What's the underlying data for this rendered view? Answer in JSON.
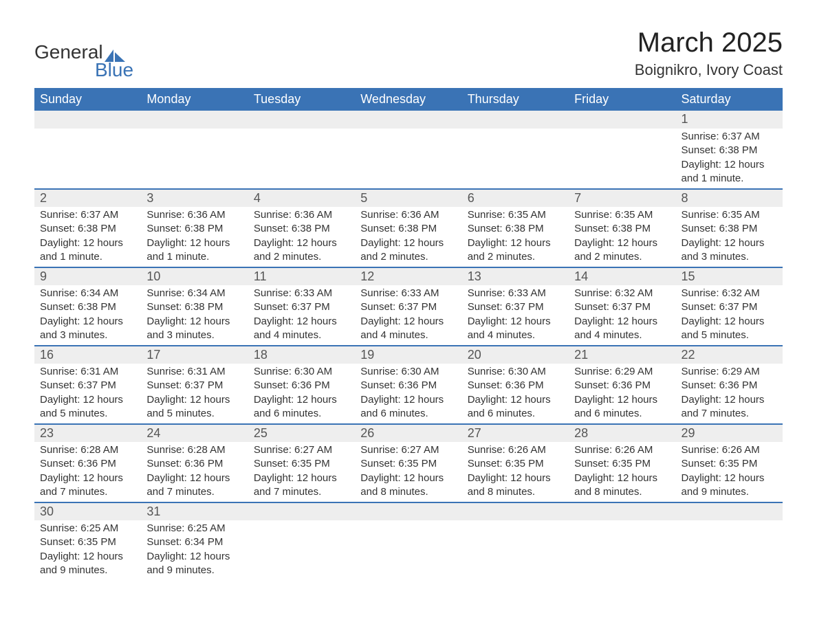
{
  "logo": {
    "word1": "General",
    "word2": "Blue"
  },
  "title": "March 2025",
  "location": "Boignikro, Ivory Coast",
  "colors": {
    "header_bg": "#3a73b5",
    "header_text": "#ffffff",
    "daynum_bg": "#eeeeee",
    "text": "#333333",
    "row_border": "#3a73b5",
    "logo_accent": "#3a73b5"
  },
  "day_names": [
    "Sunday",
    "Monday",
    "Tuesday",
    "Wednesday",
    "Thursday",
    "Friday",
    "Saturday"
  ],
  "weeks": [
    [
      null,
      null,
      null,
      null,
      null,
      null,
      {
        "n": "1",
        "sunrise": "Sunrise: 6:37 AM",
        "sunset": "Sunset: 6:38 PM",
        "daylight": "Daylight: 12 hours and 1 minute."
      }
    ],
    [
      {
        "n": "2",
        "sunrise": "Sunrise: 6:37 AM",
        "sunset": "Sunset: 6:38 PM",
        "daylight": "Daylight: 12 hours and 1 minute."
      },
      {
        "n": "3",
        "sunrise": "Sunrise: 6:36 AM",
        "sunset": "Sunset: 6:38 PM",
        "daylight": "Daylight: 12 hours and 1 minute."
      },
      {
        "n": "4",
        "sunrise": "Sunrise: 6:36 AM",
        "sunset": "Sunset: 6:38 PM",
        "daylight": "Daylight: 12 hours and 2 minutes."
      },
      {
        "n": "5",
        "sunrise": "Sunrise: 6:36 AM",
        "sunset": "Sunset: 6:38 PM",
        "daylight": "Daylight: 12 hours and 2 minutes."
      },
      {
        "n": "6",
        "sunrise": "Sunrise: 6:35 AM",
        "sunset": "Sunset: 6:38 PM",
        "daylight": "Daylight: 12 hours and 2 minutes."
      },
      {
        "n": "7",
        "sunrise": "Sunrise: 6:35 AM",
        "sunset": "Sunset: 6:38 PM",
        "daylight": "Daylight: 12 hours and 2 minutes."
      },
      {
        "n": "8",
        "sunrise": "Sunrise: 6:35 AM",
        "sunset": "Sunset: 6:38 PM",
        "daylight": "Daylight: 12 hours and 3 minutes."
      }
    ],
    [
      {
        "n": "9",
        "sunrise": "Sunrise: 6:34 AM",
        "sunset": "Sunset: 6:38 PM",
        "daylight": "Daylight: 12 hours and 3 minutes."
      },
      {
        "n": "10",
        "sunrise": "Sunrise: 6:34 AM",
        "sunset": "Sunset: 6:38 PM",
        "daylight": "Daylight: 12 hours and 3 minutes."
      },
      {
        "n": "11",
        "sunrise": "Sunrise: 6:33 AM",
        "sunset": "Sunset: 6:37 PM",
        "daylight": "Daylight: 12 hours and 4 minutes."
      },
      {
        "n": "12",
        "sunrise": "Sunrise: 6:33 AM",
        "sunset": "Sunset: 6:37 PM",
        "daylight": "Daylight: 12 hours and 4 minutes."
      },
      {
        "n": "13",
        "sunrise": "Sunrise: 6:33 AM",
        "sunset": "Sunset: 6:37 PM",
        "daylight": "Daylight: 12 hours and 4 minutes."
      },
      {
        "n": "14",
        "sunrise": "Sunrise: 6:32 AM",
        "sunset": "Sunset: 6:37 PM",
        "daylight": "Daylight: 12 hours and 4 minutes."
      },
      {
        "n": "15",
        "sunrise": "Sunrise: 6:32 AM",
        "sunset": "Sunset: 6:37 PM",
        "daylight": "Daylight: 12 hours and 5 minutes."
      }
    ],
    [
      {
        "n": "16",
        "sunrise": "Sunrise: 6:31 AM",
        "sunset": "Sunset: 6:37 PM",
        "daylight": "Daylight: 12 hours and 5 minutes."
      },
      {
        "n": "17",
        "sunrise": "Sunrise: 6:31 AM",
        "sunset": "Sunset: 6:37 PM",
        "daylight": "Daylight: 12 hours and 5 minutes."
      },
      {
        "n": "18",
        "sunrise": "Sunrise: 6:30 AM",
        "sunset": "Sunset: 6:36 PM",
        "daylight": "Daylight: 12 hours and 6 minutes."
      },
      {
        "n": "19",
        "sunrise": "Sunrise: 6:30 AM",
        "sunset": "Sunset: 6:36 PM",
        "daylight": "Daylight: 12 hours and 6 minutes."
      },
      {
        "n": "20",
        "sunrise": "Sunrise: 6:30 AM",
        "sunset": "Sunset: 6:36 PM",
        "daylight": "Daylight: 12 hours and 6 minutes."
      },
      {
        "n": "21",
        "sunrise": "Sunrise: 6:29 AM",
        "sunset": "Sunset: 6:36 PM",
        "daylight": "Daylight: 12 hours and 6 minutes."
      },
      {
        "n": "22",
        "sunrise": "Sunrise: 6:29 AM",
        "sunset": "Sunset: 6:36 PM",
        "daylight": "Daylight: 12 hours and 7 minutes."
      }
    ],
    [
      {
        "n": "23",
        "sunrise": "Sunrise: 6:28 AM",
        "sunset": "Sunset: 6:36 PM",
        "daylight": "Daylight: 12 hours and 7 minutes."
      },
      {
        "n": "24",
        "sunrise": "Sunrise: 6:28 AM",
        "sunset": "Sunset: 6:36 PM",
        "daylight": "Daylight: 12 hours and 7 minutes."
      },
      {
        "n": "25",
        "sunrise": "Sunrise: 6:27 AM",
        "sunset": "Sunset: 6:35 PM",
        "daylight": "Daylight: 12 hours and 7 minutes."
      },
      {
        "n": "26",
        "sunrise": "Sunrise: 6:27 AM",
        "sunset": "Sunset: 6:35 PM",
        "daylight": "Daylight: 12 hours and 8 minutes."
      },
      {
        "n": "27",
        "sunrise": "Sunrise: 6:26 AM",
        "sunset": "Sunset: 6:35 PM",
        "daylight": "Daylight: 12 hours and 8 minutes."
      },
      {
        "n": "28",
        "sunrise": "Sunrise: 6:26 AM",
        "sunset": "Sunset: 6:35 PM",
        "daylight": "Daylight: 12 hours and 8 minutes."
      },
      {
        "n": "29",
        "sunrise": "Sunrise: 6:26 AM",
        "sunset": "Sunset: 6:35 PM",
        "daylight": "Daylight: 12 hours and 9 minutes."
      }
    ],
    [
      {
        "n": "30",
        "sunrise": "Sunrise: 6:25 AM",
        "sunset": "Sunset: 6:35 PM",
        "daylight": "Daylight: 12 hours and 9 minutes."
      },
      {
        "n": "31",
        "sunrise": "Sunrise: 6:25 AM",
        "sunset": "Sunset: 6:34 PM",
        "daylight": "Daylight: 12 hours and 9 minutes."
      },
      null,
      null,
      null,
      null,
      null
    ]
  ]
}
